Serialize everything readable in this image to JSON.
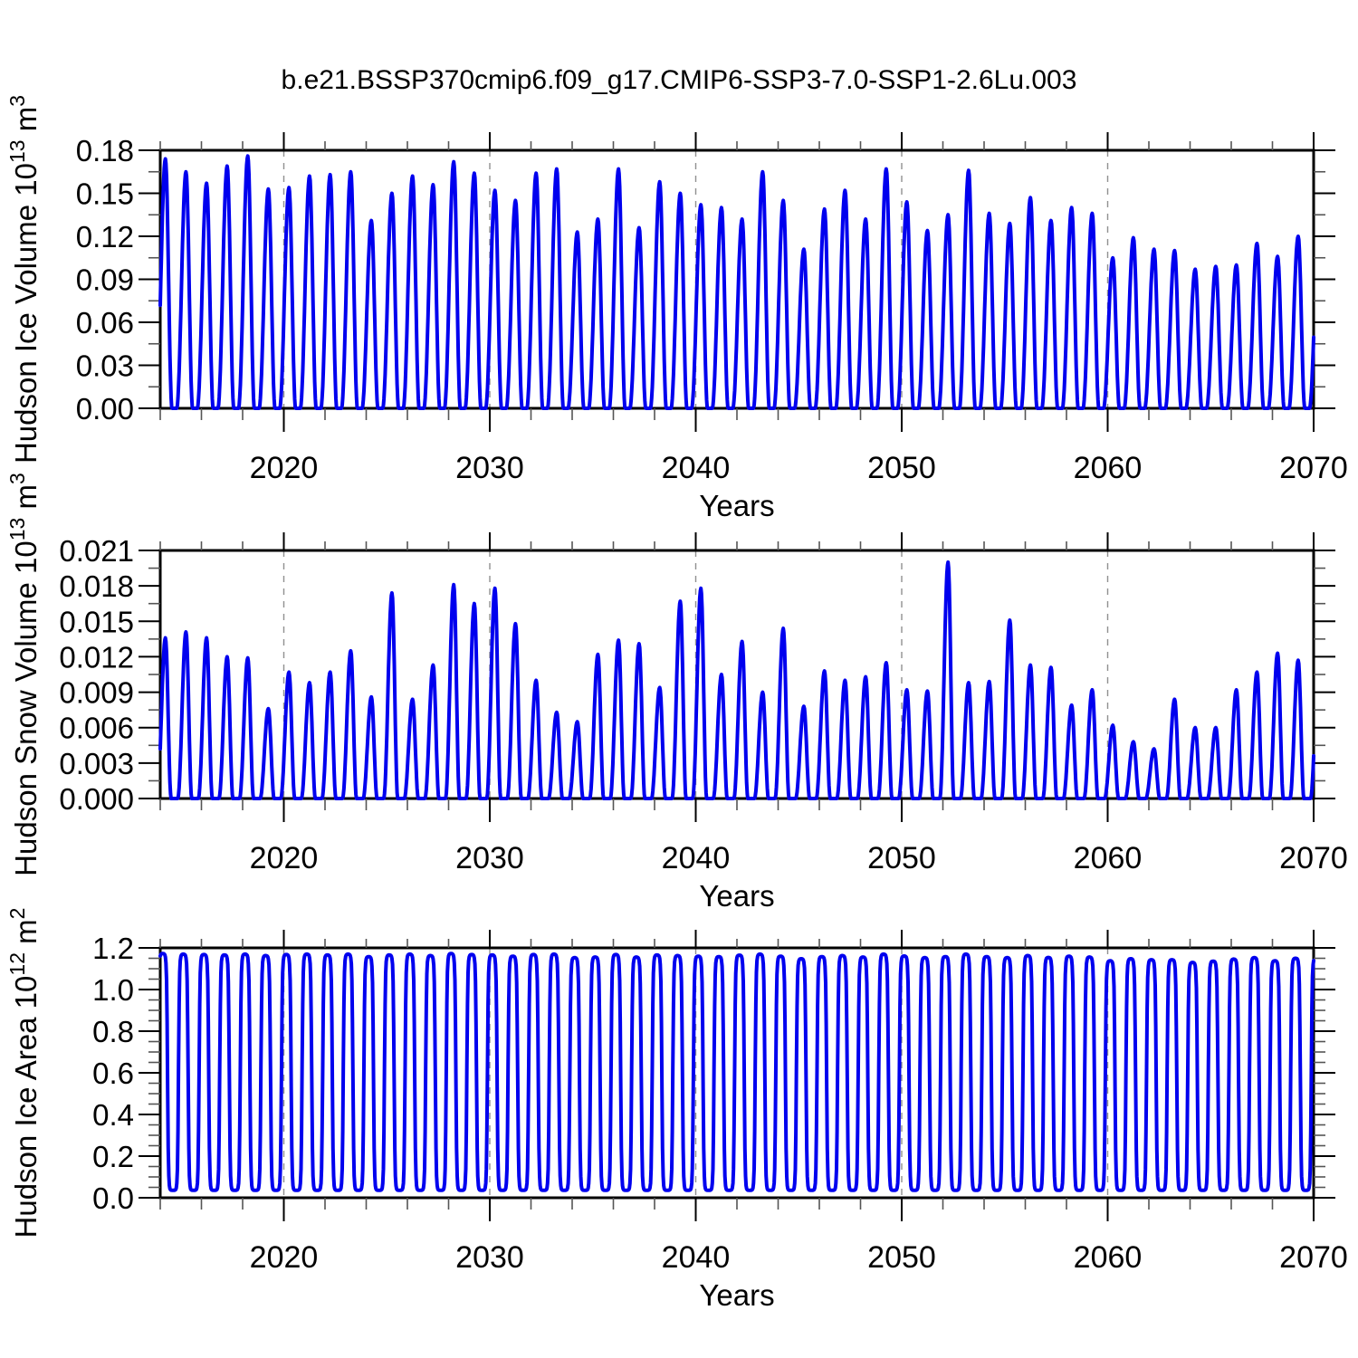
{
  "page_title": "b.e21.BSSP370cmip6.f09_g17.CMIP6-SSP3-7.0-SSP1-2.6Lu.003",
  "style": {
    "line_color": "#0000EE",
    "gridline_color": "#909090",
    "axis_color": "#000000",
    "minor_tick_color": "#555555"
  },
  "x_axis": {
    "label": "Years",
    "range": [
      2014,
      2070
    ],
    "tick_values": [
      2020,
      2030,
      2040,
      2050,
      2060,
      2070
    ],
    "tick_labels": [
      "2020",
      "2030",
      "2040",
      "2050",
      "2060",
      "2070"
    ],
    "minor_tick_step_years": 2,
    "decade_gridlines": [
      2020,
      2030,
      2040,
      2050,
      2060
    ]
  },
  "chart_data": [
    {
      "type": "line",
      "name": "hudson-ice-volume",
      "ylabel": "Hudson Ice Volume 10¹³ m³",
      "ylabel_parts": [
        {
          "text": "Hudson Ice Volume 10"
        },
        {
          "text": "13",
          "sup": true
        },
        {
          "text": " m"
        },
        {
          "text": "3",
          "sup": true
        }
      ],
      "xlabel": "Years",
      "ylim": [
        0,
        0.18
      ],
      "ytick_values": [
        0.18,
        0.15,
        0.12,
        0.09,
        0.06,
        0.03,
        0.0
      ],
      "ytick_labels": [
        "0.18",
        "0.15",
        "0.12",
        "0.09",
        "0.06",
        "0.03",
        "0.00"
      ],
      "minor_tick_step": 0.015,
      "seasonal_cycle_note": "annual cycle: winter peak (~March), near-zero Jul-Nov",
      "summer_min": 0.0,
      "annual_peaks": {
        "start_year": 2014,
        "values": [
          0.174,
          0.165,
          0.157,
          0.169,
          0.176,
          0.153,
          0.154,
          0.162,
          0.163,
          0.165,
          0.131,
          0.15,
          0.162,
          0.156,
          0.172,
          0.164,
          0.152,
          0.145,
          0.164,
          0.167,
          0.123,
          0.132,
          0.167,
          0.126,
          0.158,
          0.15,
          0.142,
          0.14,
          0.132,
          0.165,
          0.145,
          0.111,
          0.139,
          0.152,
          0.132,
          0.167,
          0.144,
          0.124,
          0.135,
          0.166,
          0.136,
          0.129,
          0.147,
          0.131,
          0.14,
          0.136,
          0.105,
          0.119,
          0.111,
          0.11,
          0.097,
          0.099,
          0.1,
          0.115,
          0.106,
          0.12
        ]
      }
    },
    {
      "type": "line",
      "name": "hudson-snow-volume",
      "ylabel": "Hudson Snow Volume 10¹³ m³",
      "ylabel_parts": [
        {
          "text": "Hudson Snow Volume 10"
        },
        {
          "text": "13",
          "sup": true
        },
        {
          "text": " m"
        },
        {
          "text": "3",
          "sup": true
        }
      ],
      "xlabel": "Years",
      "ylim": [
        0,
        0.021
      ],
      "ytick_values": [
        0.021,
        0.018,
        0.015,
        0.012,
        0.009,
        0.006,
        0.003,
        0.0
      ],
      "ytick_labels": [
        "0.021",
        "0.018",
        "0.015",
        "0.012",
        "0.009",
        "0.006",
        "0.003",
        "0.000"
      ],
      "minor_tick_step": 0.0015,
      "seasonal_cycle_note": "annual cycle: winter peak (~March), zero Jun-Nov",
      "summer_min": 0.0,
      "annual_peaks": {
        "start_year": 2014,
        "values": [
          0.0136,
          0.0141,
          0.0136,
          0.012,
          0.0119,
          0.0076,
          0.0107,
          0.0098,
          0.0107,
          0.0125,
          0.0086,
          0.0174,
          0.0084,
          0.0113,
          0.0181,
          0.0165,
          0.0178,
          0.0148,
          0.01,
          0.0073,
          0.0065,
          0.0122,
          0.0134,
          0.0131,
          0.0094,
          0.0167,
          0.0178,
          0.0105,
          0.0133,
          0.009,
          0.0144,
          0.0078,
          0.0108,
          0.01,
          0.0103,
          0.0115,
          0.0092,
          0.0091,
          0.02,
          0.0098,
          0.0099,
          0.0151,
          0.0113,
          0.0111,
          0.0079,
          0.0092,
          0.0062,
          0.0048,
          0.0042,
          0.0084,
          0.006,
          0.006,
          0.0092,
          0.0107,
          0.0123,
          0.0117
        ]
      }
    },
    {
      "type": "line",
      "name": "hudson-ice-area",
      "ylabel": "Hudson Ice Area 10¹² m²",
      "ylabel_parts": [
        {
          "text": "Hudson Ice Area 10"
        },
        {
          "text": "12",
          "sup": true
        },
        {
          "text": " m"
        },
        {
          "text": "2",
          "sup": true
        }
      ],
      "xlabel": "Years",
      "ylim": [
        0,
        1.2
      ],
      "ytick_values": [
        1.2,
        1.0,
        0.8,
        0.6,
        0.4,
        0.2,
        0.0
      ],
      "ytick_labels": [
        "1.2",
        "1.0",
        "0.8",
        "0.6",
        "0.4",
        "0.2",
        "0.0"
      ],
      "minor_tick_step": 0.05,
      "seasonal_cycle_note": "annual cycle: winter plateau Dec-May, near-zero Jul-Oct",
      "summer_min": 0.035,
      "annual_peaks": {
        "start_year": 2014,
        "values": [
          1.175,
          1.172,
          1.17,
          1.168,
          1.172,
          1.165,
          1.17,
          1.172,
          1.168,
          1.172,
          1.16,
          1.168,
          1.172,
          1.165,
          1.175,
          1.17,
          1.168,
          1.162,
          1.17,
          1.172,
          1.155,
          1.158,
          1.17,
          1.158,
          1.168,
          1.165,
          1.162,
          1.16,
          1.167,
          1.172,
          1.162,
          1.15,
          1.16,
          1.165,
          1.158,
          1.172,
          1.163,
          1.155,
          1.16,
          1.172,
          1.16,
          1.155,
          1.165,
          1.156,
          1.162,
          1.158,
          1.14,
          1.15,
          1.145,
          1.145,
          1.132,
          1.138,
          1.148,
          1.155,
          1.14,
          1.152
        ]
      }
    }
  ]
}
